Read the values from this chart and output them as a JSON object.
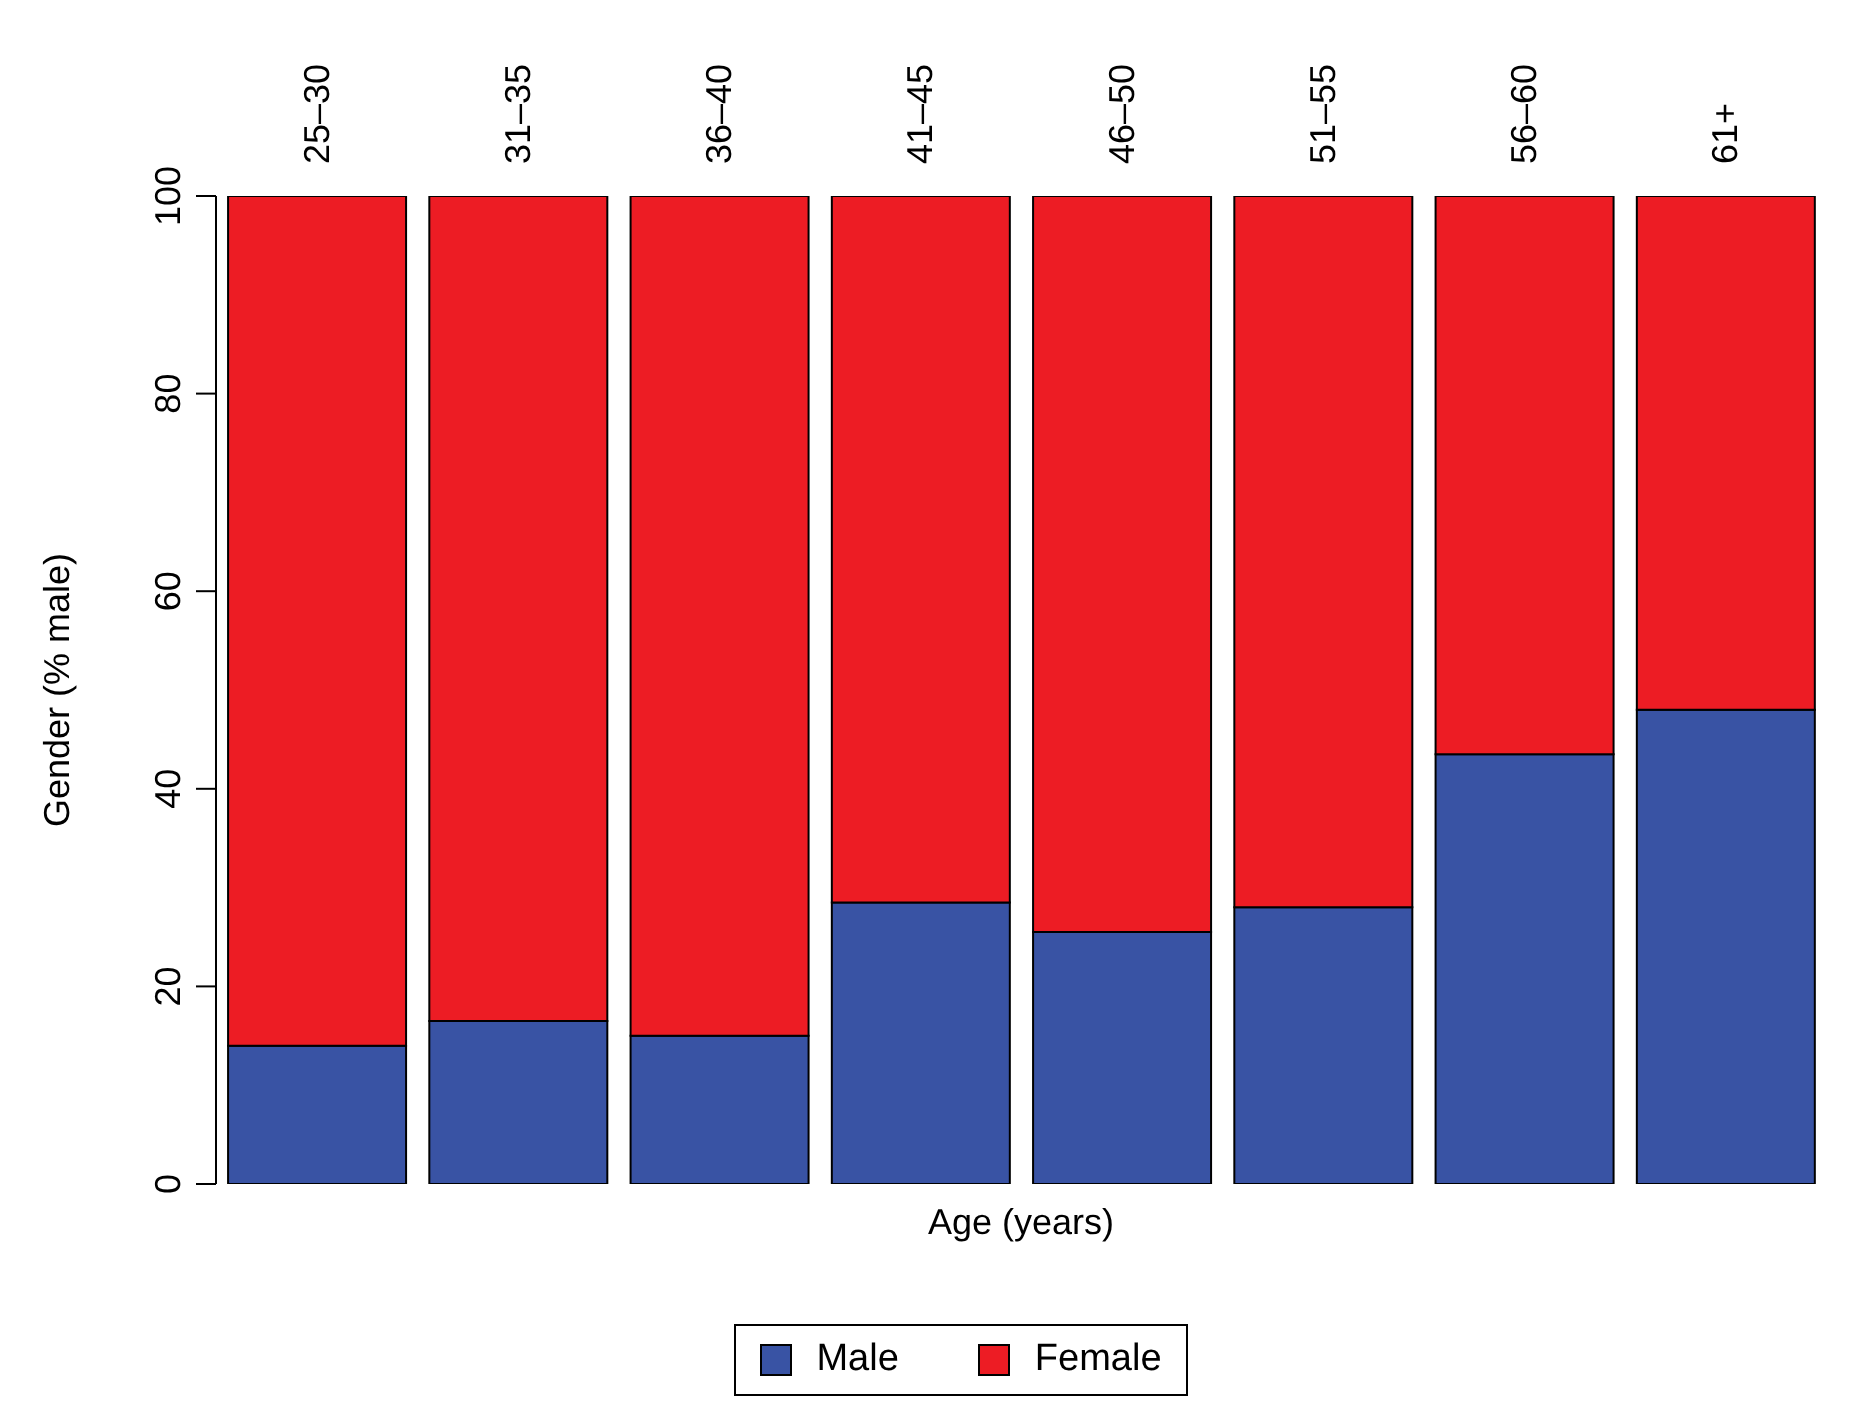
{
  "chart_data": {
    "type": "bar",
    "stacked": true,
    "xlabel": "Age (years)",
    "ylabel": "Gender (% male)",
    "categories": [
      "25–30",
      "31–35",
      "36–40",
      "41–45",
      "46–50",
      "51–55",
      "56–60",
      "61+"
    ],
    "series": [
      {
        "name": "Male",
        "color": "#3953a4",
        "values": [
          14,
          16.5,
          15,
          28.5,
          25.5,
          28,
          43.5,
          48
        ]
      },
      {
        "name": "Female",
        "color": "#ed1c24",
        "values": [
          86,
          83.5,
          85,
          71.5,
          74.5,
          72,
          56.5,
          52
        ]
      }
    ],
    "ylim": [
      0,
      100
    ],
    "yticks": [
      0,
      20,
      40,
      60,
      80,
      100
    ],
    "grid": false,
    "legend": "bottom"
  }
}
